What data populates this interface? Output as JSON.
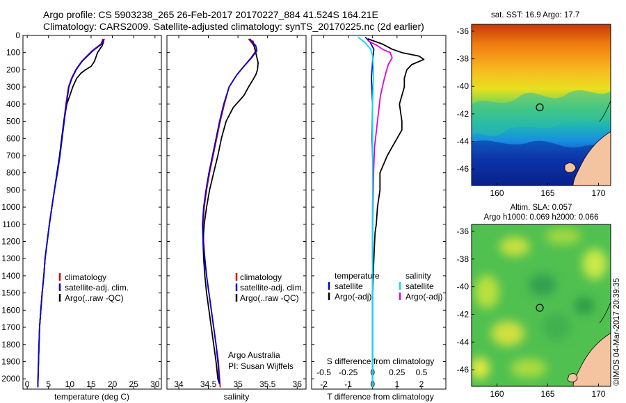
{
  "header": {
    "line1": "Argo profile: CS 5903238_265 26-Feb-2017 20170227_884 41.524S 164.21E",
    "line2": "Climatology: CARS2009. Satellite-adjusted climatology: synTS_20170225.nc (2d earlier)"
  },
  "credit": {
    "org": "Argo Australia",
    "pi": "PI: Susan Wijffels",
    "stamp": "©IMOS 04-Mar-2017 20:39:35"
  },
  "colors": {
    "climatology": "#d40000",
    "satellite": "#0000dd",
    "argo": "#000000",
    "sal_satellite": "#00e0f0",
    "sal_argo": "#e000e0",
    "land": "#f4c4a0"
  },
  "depth_axis": {
    "ticks": [
      0,
      100,
      200,
      300,
      400,
      500,
      600,
      700,
      800,
      900,
      1000,
      1100,
      1200,
      1300,
      1400,
      1500,
      1600,
      1700,
      1800,
      1900,
      2000
    ],
    "range": [
      0,
      2060
    ]
  },
  "legend_profiles": [
    "climatology",
    "satellite-adj. clim.",
    "Argo(..raw -QC)"
  ],
  "legend_diff": {
    "temp_title": "temperature",
    "temp_items": [
      "satellite",
      "Argo(-adj)"
    ],
    "sal_title": "salinity",
    "sal_items": [
      "satellite",
      "Argo(-adj)"
    ]
  },
  "chart_data": [
    {
      "type": "line",
      "xlabel": "temperature (deg C)",
      "ylabel": "",
      "xlim": [
        -1,
        31.5
      ],
      "xticks": [
        0,
        5,
        10,
        15,
        20,
        25,
        30
      ],
      "ylim": [
        2060,
        0
      ],
      "series": [
        {
          "name": "climatology",
          "x": [
            17.8,
            17.3,
            15.2,
            12.8,
            11.4,
            10.4,
            9.7,
            9.1,
            8.6,
            8.1,
            7.6,
            7.0,
            6.4,
            5.8,
            5.2,
            4.7,
            4.2,
            3.9,
            3.5,
            3.2,
            2.9,
            2.7,
            2.5
          ],
          "y": [
            20,
            50,
            90,
            150,
            200,
            250,
            300,
            400,
            500,
            600,
            700,
            800,
            900,
            1000,
            1100,
            1200,
            1300,
            1400,
            1500,
            1600,
            1700,
            1850,
            2050
          ]
        },
        {
          "name": "satellite-adj. clim.",
          "x": [
            18.1,
            17.5,
            15.4,
            12.9,
            11.5,
            10.5,
            9.8,
            9.2,
            8.7,
            8.2,
            7.7,
            7.1,
            6.4,
            5.8,
            5.2,
            4.7,
            4.2,
            3.9,
            3.5,
            3.2,
            2.9,
            2.7,
            2.5
          ],
          "y": [
            20,
            50,
            90,
            150,
            200,
            250,
            300,
            400,
            500,
            600,
            700,
            800,
            900,
            1000,
            1100,
            1200,
            1300,
            1400,
            1500,
            1600,
            1700,
            1850,
            2050
          ]
        },
        {
          "name": "Argo(..raw -QC)",
          "x": [
            18.0,
            17.6,
            16.5,
            15.8,
            15.0,
            13.7,
            12.6,
            11.6,
            10.7,
            10.0,
            9.3,
            8.6,
            8.1,
            7.6,
            7.0,
            6.4,
            5.8,
            5.2,
            4.7,
            4.2,
            3.9,
            3.5,
            3.2,
            2.9,
            2.7,
            2.5
          ],
          "y": [
            30,
            60,
            100,
            150,
            180,
            200,
            220,
            250,
            300,
            350,
            400,
            500,
            600,
            700,
            800,
            900,
            1000,
            1100,
            1200,
            1300,
            1400,
            1500,
            1600,
            1700,
            1850,
            2030
          ]
        }
      ]
    },
    {
      "type": "line",
      "xlabel": "salinity",
      "ylabel": "",
      "xlim": [
        33.8,
        36.15
      ],
      "xticks": [
        34,
        34.5,
        35,
        35.5,
        36
      ],
      "xtick_labels": [
        "34",
        "34.5",
        "35",
        "35.5",
        "36"
      ],
      "ylim": [
        2060,
        0
      ],
      "series": [
        {
          "name": "climatology",
          "x": [
            35.18,
            35.27,
            35.3,
            35.22,
            35.1,
            34.98,
            34.85,
            34.77,
            34.7,
            34.64,
            34.58,
            34.52,
            34.47,
            34.43,
            34.41,
            34.42,
            34.44,
            34.47,
            34.51,
            34.55,
            34.59,
            34.63,
            34.67,
            34.7
          ],
          "y": [
            20,
            60,
            90,
            130,
            180,
            230,
            300,
            400,
            500,
            600,
            700,
            800,
            900,
            1000,
            1100,
            1200,
            1300,
            1400,
            1500,
            1600,
            1700,
            1800,
            1900,
            2050
          ]
        },
        {
          "name": "satellite-adj. clim.",
          "x": [
            35.2,
            35.3,
            35.32,
            35.23,
            35.1,
            34.98,
            34.85,
            34.76,
            34.69,
            34.63,
            34.57,
            34.51,
            34.46,
            34.42,
            34.4,
            34.41,
            34.44,
            34.47,
            34.51,
            34.55,
            34.59,
            34.63,
            34.66,
            34.69
          ],
          "y": [
            20,
            60,
            90,
            130,
            180,
            230,
            300,
            400,
            500,
            600,
            700,
            800,
            900,
            1000,
            1100,
            1200,
            1300,
            1400,
            1500,
            1600,
            1700,
            1800,
            1900,
            2030
          ]
        },
        {
          "name": "Argo(..raw -QC)",
          "x": [
            35.25,
            35.27,
            35.3,
            35.32,
            35.34,
            35.33,
            35.3,
            35.25,
            35.18,
            35.1,
            34.92,
            34.8,
            34.72,
            34.66,
            34.59,
            34.52,
            34.47,
            34.43,
            34.41,
            34.42,
            34.44,
            34.47,
            34.51,
            34.55,
            34.59,
            34.63,
            34.66,
            34.69
          ],
          "y": [
            30,
            60,
            100,
            130,
            160,
            200,
            230,
            260,
            300,
            350,
            420,
            500,
            600,
            700,
            800,
            900,
            1000,
            1100,
            1200,
            1300,
            1400,
            1500,
            1600,
            1700,
            1800,
            1900,
            2000,
            2030
          ]
        }
      ]
    },
    {
      "type": "line",
      "title": "",
      "xlabel": "T difference from climatology",
      "xlim": [
        -2.5,
        3.0
      ],
      "xticks": [
        -2,
        -1,
        0,
        1,
        2
      ],
      "top_label": "S difference from climatology",
      "top_ticks": [
        -0.5,
        -0.25,
        0,
        0.25,
        0.5
      ],
      "ylim": [
        2060,
        0
      ],
      "series": [
        {
          "name": "temperature satellite",
          "x": [
            -0.3,
            -0.1,
            0.05,
            0,
            -0.05,
            0,
            -0.02,
            0.02,
            0,
            0,
            0,
            0,
            0,
            0,
            0,
            0,
            0
          ],
          "y": [
            10,
            40,
            80,
            150,
            250,
            400,
            600,
            800,
            1000,
            1200,
            1300,
            1400,
            1500,
            1600,
            1700,
            1850,
            2050
          ]
        },
        {
          "name": "temperature Argo(-adj)",
          "x": [
            -0.2,
            0.4,
            0.8,
            1.2,
            1.9,
            2.1,
            1.6,
            1.4,
            1.3,
            1.3,
            1.1,
            1.2,
            1.2,
            1.0,
            0.8,
            0.6,
            0.3,
            0.3,
            0.2,
            0.15,
            0.1,
            0.05,
            0,
            0,
            0
          ],
          "y": [
            20,
            50,
            80,
            100,
            120,
            140,
            170,
            200,
            250,
            300,
            400,
            500,
            550,
            600,
            650,
            700,
            800,
            900,
            1000,
            1100,
            1150,
            1300,
            1500,
            1800,
            2050
          ]
        },
        {
          "name": "salinity satellite",
          "x": [
            -0.15,
            -0.08,
            -0.02,
            0,
            0.01,
            0,
            0,
            0,
            0,
            0
          ],
          "y": [
            10,
            40,
            80,
            120,
            200,
            400,
            800,
            1200,
            1600,
            2050
          ]
        },
        {
          "name": "salinity Argo(-adj)",
          "x": [
            -0.05,
            0.05,
            0.1,
            0.18,
            0.2,
            0.16,
            0.12,
            0.08,
            0.06,
            0.04,
            0.02,
            0.01,
            0,
            0
          ],
          "y": [
            30,
            60,
            80,
            100,
            130,
            170,
            250,
            350,
            450,
            550,
            650,
            800,
            1100,
            1300
          ]
        }
      ]
    },
    {
      "type": "heatmap",
      "title": "sat. SST: 16.9 Argo: 17.7",
      "xlim": [
        157.5,
        171.2
      ],
      "ylim": [
        -47.2,
        -35.5
      ],
      "xticks": [
        160,
        165,
        170
      ],
      "yticks": [
        -36,
        -38,
        -40,
        -42,
        -44,
        -46
      ],
      "marker": [
        164.21,
        -41.524
      ]
    },
    {
      "type": "heatmap",
      "title": "Altim. SLA: 0.057",
      "subtitle": "Argo h1000: 0.069 h2000: 0.066",
      "xlim": [
        157.5,
        171.2
      ],
      "ylim": [
        -47.2,
        -35.5
      ],
      "xticks": [
        160,
        165,
        170
      ],
      "yticks": [
        -36,
        -38,
        -40,
        -42,
        -44,
        -46
      ],
      "marker": [
        164.21,
        -41.524
      ]
    }
  ]
}
